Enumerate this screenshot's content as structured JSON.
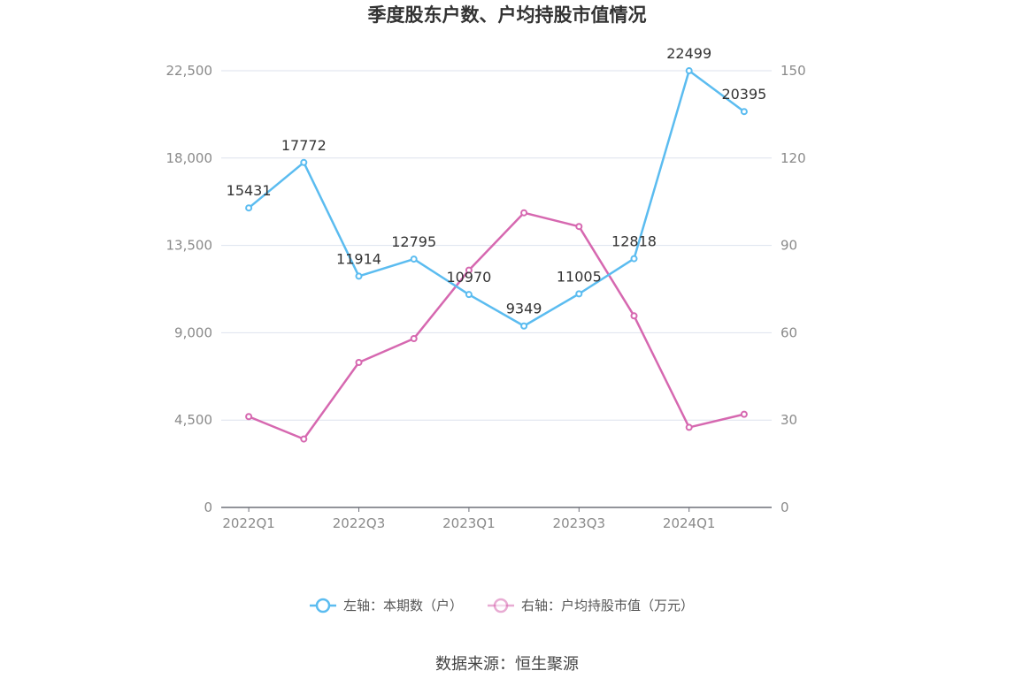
{
  "chart_data": {
    "type": "line",
    "title": "季度股东户数、户均持股市值情况",
    "categories": [
      "2022Q1",
      "2022Q2",
      "2022Q3",
      "2022Q4",
      "2023Q1",
      "2023Q2",
      "2023Q3",
      "2023Q4",
      "2024Q1",
      "2024Q2"
    ],
    "x_tick_labels": [
      "2022Q1",
      "2022Q3",
      "2023Q1",
      "2023Q3",
      "2024Q1"
    ],
    "left_axis": {
      "ticks": [
        "0",
        "4,500",
        "9,000",
        "13,500",
        "18,000",
        "22,500"
      ],
      "ylim": [
        0,
        22500
      ]
    },
    "right_axis": {
      "ticks": [
        "0",
        "30",
        "60",
        "90",
        "120",
        "150"
      ],
      "ylim": [
        0,
        150
      ]
    },
    "grid": true,
    "legend_position": "bottom",
    "series": [
      {
        "name": "左轴：本期数（户）",
        "axis": "left",
        "color": "#5bbcf0",
        "values": [
          15431,
          17772,
          11914,
          12795,
          10970,
          9349,
          11005,
          12818,
          22499,
          20395
        ],
        "labels": [
          "15431",
          "17772",
          "11914",
          "12795",
          "10970",
          "9349",
          "11005",
          "12818",
          "22499",
          "20395"
        ]
      },
      {
        "name": "右轴：户均持股市值（万元）",
        "axis": "right",
        "color": "#d668b0",
        "values": [
          31.2,
          23.5,
          49.8,
          58.0,
          81.5,
          101.2,
          96.5,
          65.8,
          27.5,
          32.0
        ]
      }
    ],
    "source": "数据来源：恒生聚源"
  }
}
